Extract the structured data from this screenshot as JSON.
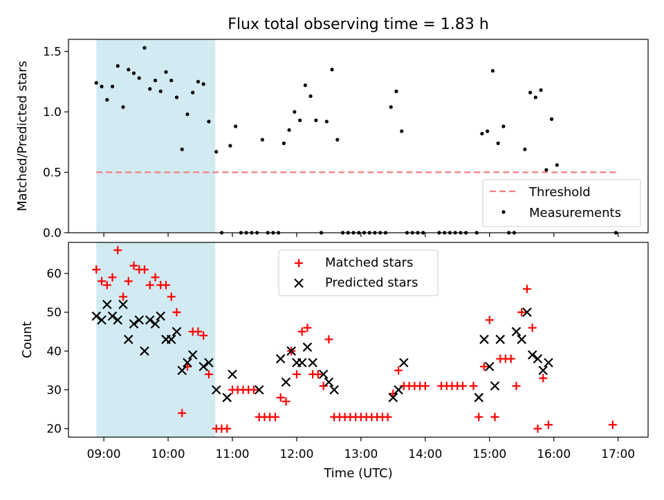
{
  "chart_data": [
    {
      "type": "scatter",
      "title": "Flux total observing time = 1.83 h",
      "xlabel": "",
      "ylabel": "Matched/Predicted stars",
      "xlim": [
        "08:27",
        "17:28"
      ],
      "ylim": [
        0,
        1.6
      ],
      "x_axis": "time (UTC), shared with lower panel",
      "y_ticks": [
        0.0,
        0.5,
        1.0,
        1.5
      ],
      "y_tick_labels": [
        "0.0",
        "0.5",
        "1.0",
        "1.5"
      ],
      "shaded_interval": {
        "start": "08:53",
        "end": "10:44",
        "color": "#add8e6"
      },
      "threshold": {
        "name": "Threshold",
        "value": 0.5,
        "start": "08:53",
        "end": "17:00",
        "color": "#f08080",
        "style": "dashed"
      },
      "series": [
        {
          "name": "Measurements",
          "marker": "dot",
          "color": "#000000",
          "points": [
            [
              "08:53",
              1.24
            ],
            [
              "08:58",
              1.21
            ],
            [
              "09:03",
              1.1
            ],
            [
              "09:08",
              1.21
            ],
            [
              "09:13",
              1.38
            ],
            [
              "09:18",
              1.04
            ],
            [
              "09:23",
              1.35
            ],
            [
              "09:28",
              1.32
            ],
            [
              "09:33",
              1.28
            ],
            [
              "09:38",
              1.53
            ],
            [
              "09:43",
              1.19
            ],
            [
              "09:48",
              1.26
            ],
            [
              "09:53",
              1.17
            ],
            [
              "09:58",
              1.33
            ],
            [
              "10:03",
              1.26
            ],
            [
              "10:08",
              1.12
            ],
            [
              "10:13",
              0.69
            ],
            [
              "10:18",
              0.98
            ],
            [
              "10:23",
              1.16
            ],
            [
              "10:28",
              1.25
            ],
            [
              "10:33",
              1.23
            ],
            [
              "10:38",
              0.92
            ],
            [
              "10:45",
              0.67
            ],
            [
              "10:50",
              0.0
            ],
            [
              "10:58",
              0.72
            ],
            [
              "11:03",
              0.88
            ],
            [
              "11:08",
              0.0
            ],
            [
              "11:13",
              0.0
            ],
            [
              "11:18",
              0.0
            ],
            [
              "11:23",
              0.0
            ],
            [
              "11:28",
              0.77
            ],
            [
              "11:33",
              0.0
            ],
            [
              "11:38",
              0.0
            ],
            [
              "11:43",
              0.0
            ],
            [
              "11:48",
              0.74
            ],
            [
              "11:53",
              0.85
            ],
            [
              "11:58",
              1.0
            ],
            [
              "12:03",
              0.93
            ],
            [
              "12:08",
              1.22
            ],
            [
              "12:13",
              1.13
            ],
            [
              "12:18",
              0.93
            ],
            [
              "12:23",
              0.0
            ],
            [
              "12:28",
              0.92
            ],
            [
              "12:33",
              1.35
            ],
            [
              "12:38",
              0.77
            ],
            [
              "12:43",
              0.0
            ],
            [
              "12:48",
              0.0
            ],
            [
              "12:53",
              0.0
            ],
            [
              "12:58",
              0.0
            ],
            [
              "13:03",
              0.0
            ],
            [
              "13:08",
              0.0
            ],
            [
              "13:13",
              0.0
            ],
            [
              "13:18",
              0.0
            ],
            [
              "13:23",
              0.0
            ],
            [
              "13:28",
              1.04
            ],
            [
              "13:33",
              1.17
            ],
            [
              "13:38",
              0.84
            ],
            [
              "13:43",
              0.0
            ],
            [
              "13:48",
              0.0
            ],
            [
              "13:53",
              0.0
            ],
            [
              "13:58",
              0.0
            ],
            [
              "14:13",
              0.0
            ],
            [
              "14:18",
              0.0
            ],
            [
              "14:23",
              0.0
            ],
            [
              "14:28",
              0.0
            ],
            [
              "14:33",
              0.0
            ],
            [
              "14:38",
              0.0
            ],
            [
              "14:48",
              0.0
            ],
            [
              "14:53",
              0.82
            ],
            [
              "14:58",
              0.84
            ],
            [
              "15:03",
              1.34
            ],
            [
              "15:08",
              0.74
            ],
            [
              "15:13",
              0.88
            ],
            [
              "15:18",
              0.0
            ],
            [
              "15:23",
              0.0
            ],
            [
              "15:33",
              0.69
            ],
            [
              "15:38",
              1.16
            ],
            [
              "15:43",
              1.12
            ],
            [
              "15:48",
              1.18
            ],
            [
              "15:53",
              0.52
            ],
            [
              "15:58",
              0.94
            ],
            [
              "16:03",
              0.56
            ],
            [
              "16:58",
              0.0
            ]
          ]
        }
      ],
      "legend": {
        "position": "lower right",
        "entries": [
          "Threshold",
          "Measurements"
        ]
      }
    },
    {
      "type": "scatter",
      "title": "",
      "xlabel": "Time (UTC)",
      "ylabel": "Count",
      "xlim": [
        "08:27",
        "17:28"
      ],
      "ylim": [
        17.8,
        68.0
      ],
      "x_ticks": [
        "09:00",
        "10:00",
        "11:00",
        "12:00",
        "13:00",
        "14:00",
        "15:00",
        "16:00",
        "17:00"
      ],
      "y_ticks": [
        20,
        30,
        40,
        50,
        60
      ],
      "y_tick_labels": [
        "20",
        "30",
        "40",
        "50",
        "60"
      ],
      "shaded_interval": {
        "start": "08:53",
        "end": "10:44",
        "color": "#add8e6"
      },
      "series": [
        {
          "name": "Matched stars",
          "marker": "plus",
          "color": "#ff0000",
          "points": [
            [
              "08:53",
              61
            ],
            [
              "08:58",
              58
            ],
            [
              "09:03",
              57
            ],
            [
              "09:08",
              59
            ],
            [
              "09:13",
              66
            ],
            [
              "09:18",
              54
            ],
            [
              "09:23",
              58
            ],
            [
              "09:28",
              62
            ],
            [
              "09:33",
              61
            ],
            [
              "09:38",
              61
            ],
            [
              "09:43",
              57
            ],
            [
              "09:48",
              59
            ],
            [
              "09:53",
              57
            ],
            [
              "09:58",
              57
            ],
            [
              "10:03",
              54
            ],
            [
              "10:08",
              50
            ],
            [
              "10:13",
              24
            ],
            [
              "10:18",
              36
            ],
            [
              "10:23",
              45
            ],
            [
              "10:28",
              45
            ],
            [
              "10:33",
              44
            ],
            [
              "10:38",
              34
            ],
            [
              "10:45",
              20
            ],
            [
              "10:50",
              20
            ],
            [
              "10:55",
              20
            ],
            [
              "11:00",
              30
            ],
            [
              "11:05",
              30
            ],
            [
              "11:10",
              30
            ],
            [
              "11:15",
              30
            ],
            [
              "11:20",
              30
            ],
            [
              "11:25",
              23
            ],
            [
              "11:30",
              23
            ],
            [
              "11:35",
              23
            ],
            [
              "11:40",
              23
            ],
            [
              "11:45",
              28
            ],
            [
              "11:50",
              27
            ],
            [
              "11:55",
              40
            ],
            [
              "12:00",
              34
            ],
            [
              "12:05",
              45
            ],
            [
              "12:10",
              46
            ],
            [
              "12:15",
              34
            ],
            [
              "12:20",
              34
            ],
            [
              "12:25",
              31
            ],
            [
              "12:30",
              43
            ],
            [
              "12:35",
              23
            ],
            [
              "12:40",
              23
            ],
            [
              "12:45",
              23
            ],
            [
              "12:50",
              23
            ],
            [
              "12:55",
              23
            ],
            [
              "13:00",
              23
            ],
            [
              "13:05",
              23
            ],
            [
              "13:10",
              23
            ],
            [
              "13:15",
              23
            ],
            [
              "13:20",
              23
            ],
            [
              "13:25",
              23
            ],
            [
              "13:30",
              29
            ],
            [
              "13:35",
              35
            ],
            [
              "13:40",
              31
            ],
            [
              "13:45",
              31
            ],
            [
              "13:50",
              31
            ],
            [
              "13:55",
              31
            ],
            [
              "14:00",
              31
            ],
            [
              "14:15",
              31
            ],
            [
              "14:20",
              31
            ],
            [
              "14:25",
              31
            ],
            [
              "14:30",
              31
            ],
            [
              "14:35",
              31
            ],
            [
              "14:45",
              31
            ],
            [
              "14:50",
              23
            ],
            [
              "14:55",
              36
            ],
            [
              "15:00",
              48
            ],
            [
              "15:05",
              23
            ],
            [
              "15:10",
              38
            ],
            [
              "15:15",
              38
            ],
            [
              "15:20",
              38
            ],
            [
              "15:25",
              31
            ],
            [
              "15:30",
              50
            ],
            [
              "15:35",
              56
            ],
            [
              "15:40",
              46
            ],
            [
              "15:45",
              20
            ],
            [
              "15:50",
              33
            ],
            [
              "15:55",
              21
            ],
            [
              "16:55",
              21
            ]
          ]
        },
        {
          "name": "Predicted stars",
          "marker": "x",
          "color": "#000000",
          "points": [
            [
              "08:53",
              49
            ],
            [
              "08:58",
              48
            ],
            [
              "09:03",
              52
            ],
            [
              "09:08",
              49
            ],
            [
              "09:13",
              48
            ],
            [
              "09:18",
              52
            ],
            [
              "09:23",
              43
            ],
            [
              "09:28",
              47
            ],
            [
              "09:33",
              48
            ],
            [
              "09:38",
              40
            ],
            [
              "09:43",
              48
            ],
            [
              "09:48",
              47
            ],
            [
              "09:53",
              49
            ],
            [
              "09:58",
              43
            ],
            [
              "10:03",
              43
            ],
            [
              "10:08",
              45
            ],
            [
              "10:13",
              35
            ],
            [
              "10:18",
              37
            ],
            [
              "10:23",
              39
            ],
            [
              "10:33",
              36
            ],
            [
              "10:38",
              37
            ],
            [
              "10:45",
              30
            ],
            [
              "10:55",
              28
            ],
            [
              "11:00",
              34
            ],
            [
              "11:25",
              30
            ],
            [
              "11:45",
              38
            ],
            [
              "11:50",
              32
            ],
            [
              "11:55",
              40
            ],
            [
              "12:00",
              37
            ],
            [
              "12:05",
              37
            ],
            [
              "12:10",
              41
            ],
            [
              "12:15",
              37
            ],
            [
              "12:25",
              34
            ],
            [
              "12:30",
              32
            ],
            [
              "12:35",
              30
            ],
            [
              "13:30",
              28
            ],
            [
              "13:35",
              30
            ],
            [
              "13:40",
              37
            ],
            [
              "14:50",
              28
            ],
            [
              "14:55",
              43
            ],
            [
              "15:00",
              36
            ],
            [
              "15:05",
              31
            ],
            [
              "15:10",
              43
            ],
            [
              "15:25",
              45
            ],
            [
              "15:30",
              43
            ],
            [
              "15:35",
              50
            ],
            [
              "15:40",
              39
            ],
            [
              "15:45",
              38
            ],
            [
              "15:50",
              35
            ],
            [
              "15:55",
              37
            ]
          ]
        }
      ],
      "legend": {
        "position": "upper center",
        "entries": [
          "Matched stars",
          "Predicted stars"
        ]
      }
    }
  ]
}
